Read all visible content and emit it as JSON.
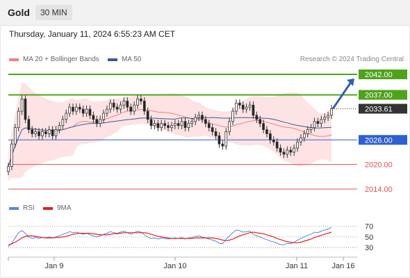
{
  "header": {
    "symbol": "Gold",
    "timeframe": "30 MIN"
  },
  "datetime": "Thursday, January 11, 2024 6:55:23 AM CET",
  "legend": {
    "ma20_label": "MA 20 + Bollinger Bands",
    "ma50_label": "MA 50",
    "copyright": "Research © 2024 Trading Central",
    "rsi_label": "RSI",
    "rsi_ma_label": "9MA"
  },
  "colors": {
    "resistance": "#4fa31a",
    "support": "#2f5fd0",
    "minor_support": "#e05050",
    "price_box": "#333333",
    "bollinger_fill": "#fde3e3",
    "ma20": "#f08080",
    "ma50": "#3a5a99",
    "rsi": "#5b86d6",
    "rsi_ma": "#e02020",
    "arrow": "#2f5fb0",
    "candle_up": "#ffffff",
    "candle_down": "#222222"
  },
  "chart_data": {
    "type": "candlestick",
    "x_labels": [
      "Jan 9",
      "Jan 10",
      "Jan 11",
      "Jan 16"
    ],
    "price_levels": [
      {
        "value": "2042.00",
        "kind": "resistance"
      },
      {
        "value": "2037.00",
        "kind": "resistance"
      },
      {
        "value": "2033.61",
        "kind": "price"
      },
      {
        "value": "2026.00",
        "kind": "support"
      },
      {
        "value": "2020.00",
        "kind": "minor_support"
      },
      {
        "value": "2014.00",
        "kind": "minor_support"
      }
    ],
    "ylim": [
      2012,
      2046
    ],
    "candles_close": [
      2019.5,
      2025.0,
      2029.0,
      2033.0,
      2036.0,
      2031.0,
      2028.5,
      2027.5,
      2028.0,
      2027.0,
      2028.0,
      2027.5,
      2028.5,
      2027.0,
      2028.5,
      2029.5,
      2031.0,
      2032.5,
      2034.0,
      2033.0,
      2034.0,
      2033.5,
      2032.5,
      2033.5,
      2032.0,
      2031.0,
      2030.0,
      2031.0,
      2032.5,
      2033.5,
      2035.0,
      2034.0,
      2033.5,
      2034.5,
      2035.5,
      2034.0,
      2033.0,
      2034.5,
      2036.0,
      2035.5,
      2033.0,
      2031.0,
      2029.5,
      2030.0,
      2029.0,
      2030.0,
      2029.5,
      2029.0,
      2029.5,
      2030.0,
      2029.5,
      2030.5,
      2029.0,
      2030.0,
      2030.5,
      2031.5,
      2032.0,
      2031.0,
      2030.0,
      2029.0,
      2028.0,
      2027.0,
      2025.0,
      2024.5,
      2028.0,
      2030.5,
      2033.0,
      2035.0,
      2034.5,
      2033.5,
      2034.0,
      2034.5,
      2032.0,
      2031.0,
      2030.0,
      2028.5,
      2027.5,
      2026.0,
      2025.5,
      2024.0,
      2023.0,
      2022.5,
      2023.5,
      2023.0,
      2024.0,
      2025.5,
      2026.5,
      2027.5,
      2028.5,
      2029.0,
      2030.5,
      2030.0,
      2031.0,
      2031.5,
      2032.0,
      2033.61
    ],
    "rsi_levels": [
      70,
      50,
      30
    ],
    "rsi_values": [
      32,
      38,
      48,
      58,
      62,
      57,
      50,
      47,
      49,
      47,
      49,
      48,
      50,
      48,
      50,
      52,
      55,
      57,
      60,
      58,
      59,
      57,
      55,
      57,
      54,
      52,
      50,
      52,
      55,
      57,
      60,
      58,
      57,
      59,
      61,
      58,
      55,
      58,
      61,
      59,
      54,
      50,
      47,
      48,
      46,
      48,
      47,
      46,
      47,
      48,
      47,
      49,
      46,
      48,
      49,
      51,
      52,
      50,
      48,
      46,
      44,
      42,
      38,
      37,
      46,
      52,
      58,
      63,
      62,
      59,
      60,
      61,
      55,
      52,
      50,
      47,
      45,
      42,
      41,
      38,
      36,
      35,
      38,
      37,
      40,
      44,
      47,
      50,
      53,
      55,
      59,
      58,
      61,
      63,
      65,
      68
    ],
    "rsi_ma_values": [
      35,
      37,
      40,
      44,
      48,
      51,
      52,
      52,
      51,
      50,
      49,
      48,
      48,
      48,
      49,
      49,
      50,
      51,
      53,
      55,
      56,
      57,
      57,
      57,
      57,
      56,
      55,
      54,
      54,
      54,
      55,
      56,
      56,
      57,
      58,
      58,
      58,
      58,
      58,
      58,
      58,
      57,
      55,
      53,
      51,
      50,
      49,
      48,
      47,
      47,
      47,
      47,
      47,
      47,
      47,
      48,
      48,
      48,
      48,
      48,
      48,
      47,
      46,
      44,
      43,
      44,
      46,
      49,
      52,
      54,
      56,
      58,
      59,
      58,
      57,
      56,
      54,
      52,
      50,
      47,
      45,
      43,
      41,
      40,
      39,
      39,
      40,
      42,
      44,
      46,
      49,
      51,
      53,
      55,
      57,
      59
    ]
  }
}
